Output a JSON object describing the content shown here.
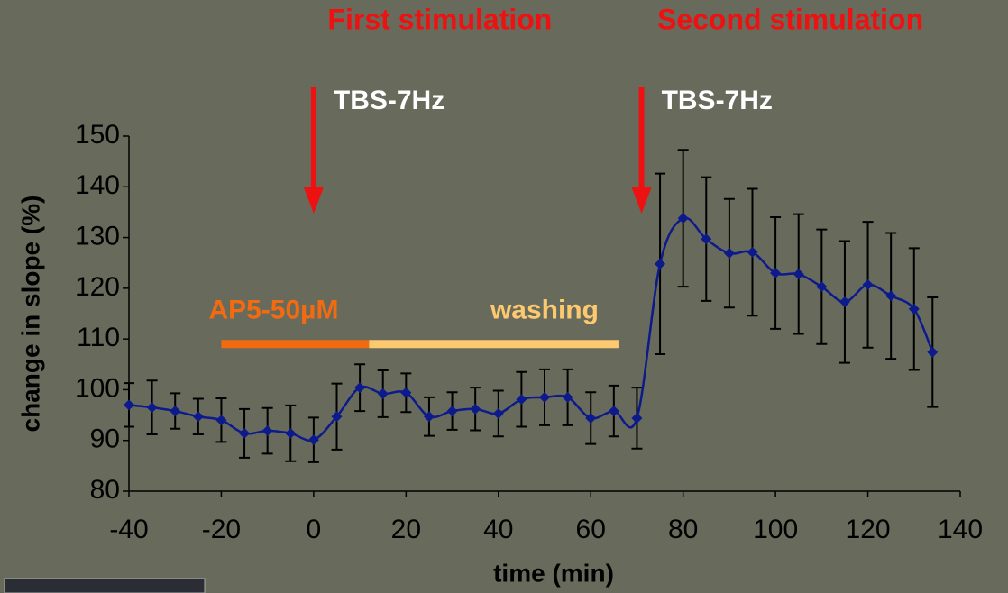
{
  "chart_data": {
    "type": "line",
    "xlabel": "time (min)",
    "ylabel": "change in slope (%)",
    "x": [
      -40,
      -35,
      -30,
      -25,
      -20,
      -15,
      -10,
      -5,
      0,
      5,
      10,
      15,
      20,
      25,
      30,
      35,
      40,
      45,
      50,
      55,
      60,
      65,
      70,
      75,
      80,
      85,
      90,
      95,
      100,
      105,
      110,
      115,
      120,
      125,
      130,
      134
    ],
    "series": [
      {
        "color": "#0d1a8c",
        "values": [
          97.0,
          96.5,
          95.8,
          94.7,
          94.0,
          91.4,
          91.9,
          91.4,
          90.1,
          94.7,
          100.4,
          99.2,
          99.4,
          94.7,
          95.8,
          96.2,
          95.3,
          98.1,
          98.5,
          98.5,
          94.4,
          95.8,
          94.4,
          124.8,
          133.8,
          129.7,
          126.9,
          127.1,
          123.0,
          122.8,
          120.3,
          117.3,
          120.7,
          118.5,
          115.9,
          107.4
        ],
        "errors": [
          4.3,
          5.3,
          3.5,
          3.5,
          4.3,
          4.8,
          4.5,
          5.5,
          4.4,
          6.5,
          4.6,
          4.6,
          3.8,
          3.8,
          3.7,
          4.2,
          4.5,
          5.4,
          5.5,
          5.5,
          5.1,
          5.0,
          6.0,
          17.8,
          13.5,
          12.2,
          10.7,
          12.5,
          11.0,
          11.8,
          11.3,
          12.0,
          12.4,
          12.4,
          12.0,
          10.8
        ]
      }
    ],
    "xlim": [
      -40,
      140
    ],
    "xticks": [
      -40,
      -20,
      0,
      20,
      40,
      60,
      80,
      100,
      120,
      140
    ],
    "ylim": [
      80,
      150
    ],
    "yticks": [
      80,
      90,
      100,
      110,
      120,
      130,
      140,
      150
    ],
    "stimulations": [
      {
        "title": "First stimulation",
        "label": "TBS-7Hz",
        "x": 0
      },
      {
        "title": "Second stimulation",
        "label": "TBS-7Hz",
        "x": 71
      }
    ],
    "bands": [
      {
        "label": "AP5-50µM",
        "x": [
          -20,
          12
        ],
        "y": 109,
        "color": "#f26b10"
      },
      {
        "label": "washing",
        "x": [
          12,
          66
        ],
        "y": 109,
        "color": "#fcc870"
      }
    ]
  }
}
